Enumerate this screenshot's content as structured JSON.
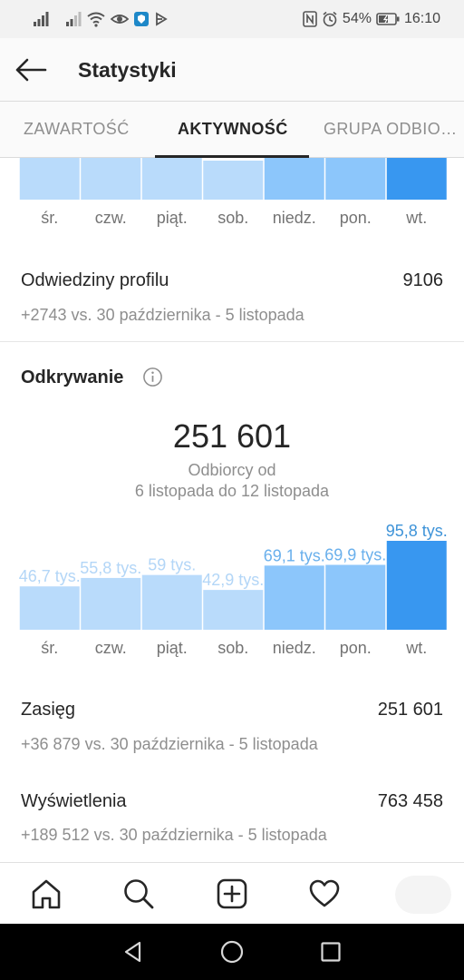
{
  "status_bar": {
    "left_icons": [
      "signal-icon",
      "signal-icon",
      "wifi-icon",
      "eye-icon",
      "shield-app-icon",
      "vpn-icon"
    ],
    "right_icons": [
      "nfc-icon",
      "alarm-icon"
    ],
    "battery_percent": "54%",
    "time": "16:10"
  },
  "header": {
    "back_icon": "arrow-left-icon",
    "title": "Statystyki"
  },
  "tabs": [
    {
      "label": "ZAWARTOŚĆ",
      "active": false
    },
    {
      "label": "AKTYWNOŚĆ",
      "active": true
    },
    {
      "label": "GRUPA ODBIO…",
      "active": false
    }
  ],
  "colors": {
    "bar_light": "#b9dbfb",
    "bar_mid": "#8cc6fb",
    "bar_strong": "#3897f0",
    "label_light": "#b3d6f7",
    "label_mid": "#6ab0ec",
    "label_strong": "#3e93d8"
  },
  "chart_data": [
    {
      "type": "bar",
      "categories": [
        "śr.",
        "czw.",
        "piąt.",
        "sob.",
        "niedz.",
        "pon.",
        "wt."
      ],
      "highlight": "wt."
    },
    {
      "type": "bar",
      "categories": [
        "śr.",
        "czw.",
        "piąt.",
        "sob.",
        "niedz.",
        "pon.",
        "wt."
      ],
      "values": [
        46.7,
        55.8,
        59,
        42.9,
        69.1,
        69.9,
        95.8
      ],
      "value_labels": [
        "46,7 tys.",
        "55,8 tys.",
        "59 tys.",
        "42,9 tys.",
        "69,1 tys.",
        "69,9 tys.",
        "95,8 tys."
      ],
      "highlight": "wt."
    }
  ],
  "profile_visits": {
    "label": "Odwiedziny profilu",
    "value": "9106",
    "change": "+2743 vs. 30 października - 5 listopada"
  },
  "discovery": {
    "title": "Odkrywanie",
    "info_icon": "info-icon",
    "total": "251 601",
    "caption_line1": "Odbiorcy od",
    "caption_line2": "6 listopada do 12 listopada"
  },
  "reach": {
    "label": "Zasięg",
    "value": "251 601",
    "change": "+36 879 vs. 30 października - 5 listopada"
  },
  "impressions": {
    "label": "Wyświetlenia",
    "value": "763 458",
    "change": "+189 512 vs. 30 października - 5 listopada"
  },
  "bottom_nav": [
    "home-icon",
    "search-icon",
    "add-post-icon",
    "heart-icon",
    "profile-avatar"
  ],
  "system_nav": [
    "back-triangle-icon",
    "home-circle-icon",
    "recents-square-icon"
  ]
}
